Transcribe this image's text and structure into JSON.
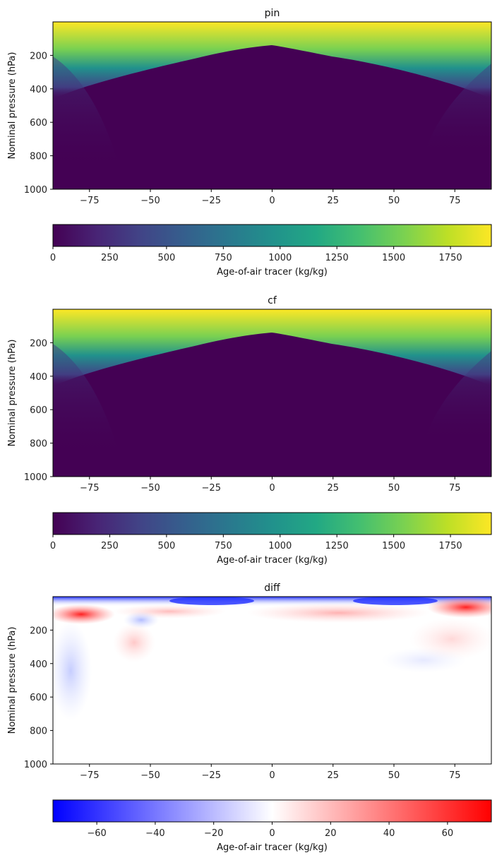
{
  "chart_data": [
    {
      "type": "heatmap",
      "title": "pin",
      "ylabel": "Nominal pressure (hPa)",
      "xlabel": "",
      "xlim": [
        -90,
        90
      ],
      "ylim": [
        1000,
        0
      ],
      "xticks": [
        "−75",
        "−50",
        "−25",
        "0",
        "25",
        "50",
        "75"
      ],
      "xtick_values": [
        -75,
        -50,
        -25,
        0,
        25,
        50,
        75
      ],
      "yticks": [
        "200",
        "400",
        "600",
        "800",
        "1000"
      ],
      "ytick_values": [
        200,
        400,
        600,
        800,
        1000
      ],
      "colormap": "viridis",
      "colorbar": {
        "label": "Age-of-air tracer (kg/kg)",
        "range": [
          0,
          1930
        ],
        "ticks": [
          "0",
          "250",
          "500",
          "750",
          "1000",
          "1250",
          "1500",
          "1750"
        ],
        "tick_values": [
          0,
          250,
          500,
          750,
          1000,
          1250,
          1500,
          1750
        ]
      }
    },
    {
      "type": "heatmap",
      "title": "cf",
      "ylabel": "Nominal pressure (hPa)",
      "xlabel": "",
      "xlim": [
        -90,
        90
      ],
      "ylim": [
        1000,
        0
      ],
      "xticks": [
        "−75",
        "−50",
        "−25",
        "0",
        "25",
        "50",
        "75"
      ],
      "xtick_values": [
        -75,
        -50,
        -25,
        0,
        25,
        50,
        75
      ],
      "yticks": [
        "200",
        "400",
        "600",
        "800",
        "1000"
      ],
      "ytick_values": [
        200,
        400,
        600,
        800,
        1000
      ],
      "colormap": "viridis",
      "colorbar": {
        "label": "Age-of-air tracer (kg/kg)",
        "range": [
          0,
          1930
        ],
        "ticks": [
          "0",
          "250",
          "500",
          "750",
          "1000",
          "1250",
          "1500",
          "1750"
        ],
        "tick_values": [
          0,
          250,
          500,
          750,
          1000,
          1250,
          1500,
          1750
        ]
      }
    },
    {
      "type": "heatmap",
      "title": "diff",
      "ylabel": "Nominal pressure (hPa)",
      "xlabel": "",
      "xlim": [
        -90,
        90
      ],
      "ylim": [
        1000,
        0
      ],
      "xticks": [
        "−75",
        "−50",
        "−25",
        "0",
        "25",
        "50",
        "75"
      ],
      "xtick_values": [
        -75,
        -50,
        -25,
        0,
        25,
        50,
        75
      ],
      "yticks": [
        "200",
        "400",
        "600",
        "800",
        "1000"
      ],
      "ytick_values": [
        200,
        400,
        600,
        800,
        1000
      ],
      "colormap": "bwr",
      "colorbar": {
        "label": "Age-of-air tracer (kg/kg)",
        "range": [
          -75,
          75
        ],
        "ticks": [
          "−60",
          "−40",
          "−20",
          "0",
          "20",
          "40",
          "60"
        ],
        "tick_values": [
          -60,
          -40,
          -20,
          0,
          20,
          40,
          60
        ]
      }
    }
  ]
}
